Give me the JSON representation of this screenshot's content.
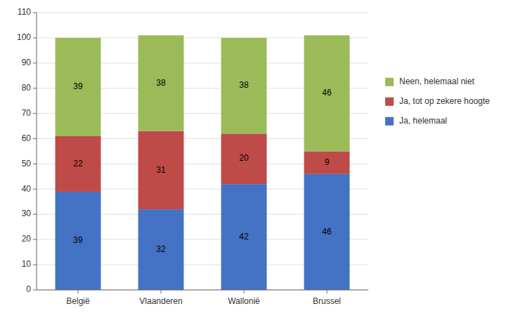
{
  "chart_data": {
    "type": "bar",
    "stacked": true,
    "categories": [
      "België",
      "Vlaanderen",
      "Wallonië",
      "Brussel"
    ],
    "series": [
      {
        "name": "Ja, helemaal",
        "color": "#4472C4",
        "values": [
          39,
          32,
          42,
          46
        ]
      },
      {
        "name": "Ja, tot op zekere hoogte",
        "color": "#BE4B48",
        "values": [
          22,
          31,
          20,
          9
        ]
      },
      {
        "name": "Neen, helemaal niet",
        "color": "#9BBB59",
        "values": [
          39,
          38,
          38,
          46
        ]
      }
    ],
    "ylim": [
      0,
      110
    ],
    "yticks": [
      0,
      10,
      20,
      30,
      40,
      50,
      60,
      70,
      80,
      90,
      100,
      110
    ],
    "grid": true,
    "legend": "right",
    "data_labels": true
  }
}
